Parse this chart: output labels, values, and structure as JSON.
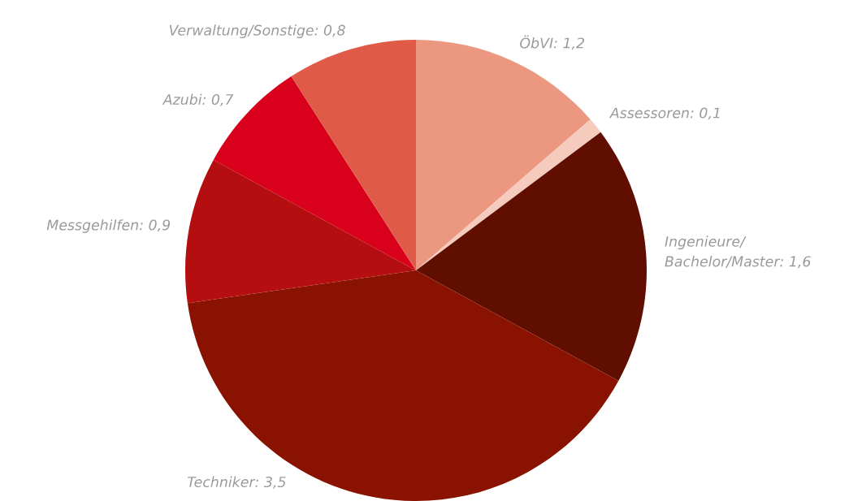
{
  "chart_data": {
    "type": "pie",
    "categories": [
      "ÖbVI",
      "Assessoren",
      "Ingenieure/\nBachelor/Master",
      "Techniker",
      "Messgehilfen",
      "Azubi",
      "Verwaltung/Sonstige"
    ],
    "values": [
      1.2,
      0.1,
      1.6,
      3.5,
      0.9,
      0.7,
      0.8
    ],
    "value_labels": [
      "1,2",
      "0,1",
      "1,6",
      "3,5",
      "0,9",
      "0,7",
      "0,8"
    ],
    "colors": [
      "#ec9880",
      "#f5cbbd",
      "#600e00",
      "#8a1200",
      "#b50e10",
      "#d8001a",
      "#e05a48"
    ]
  }
}
